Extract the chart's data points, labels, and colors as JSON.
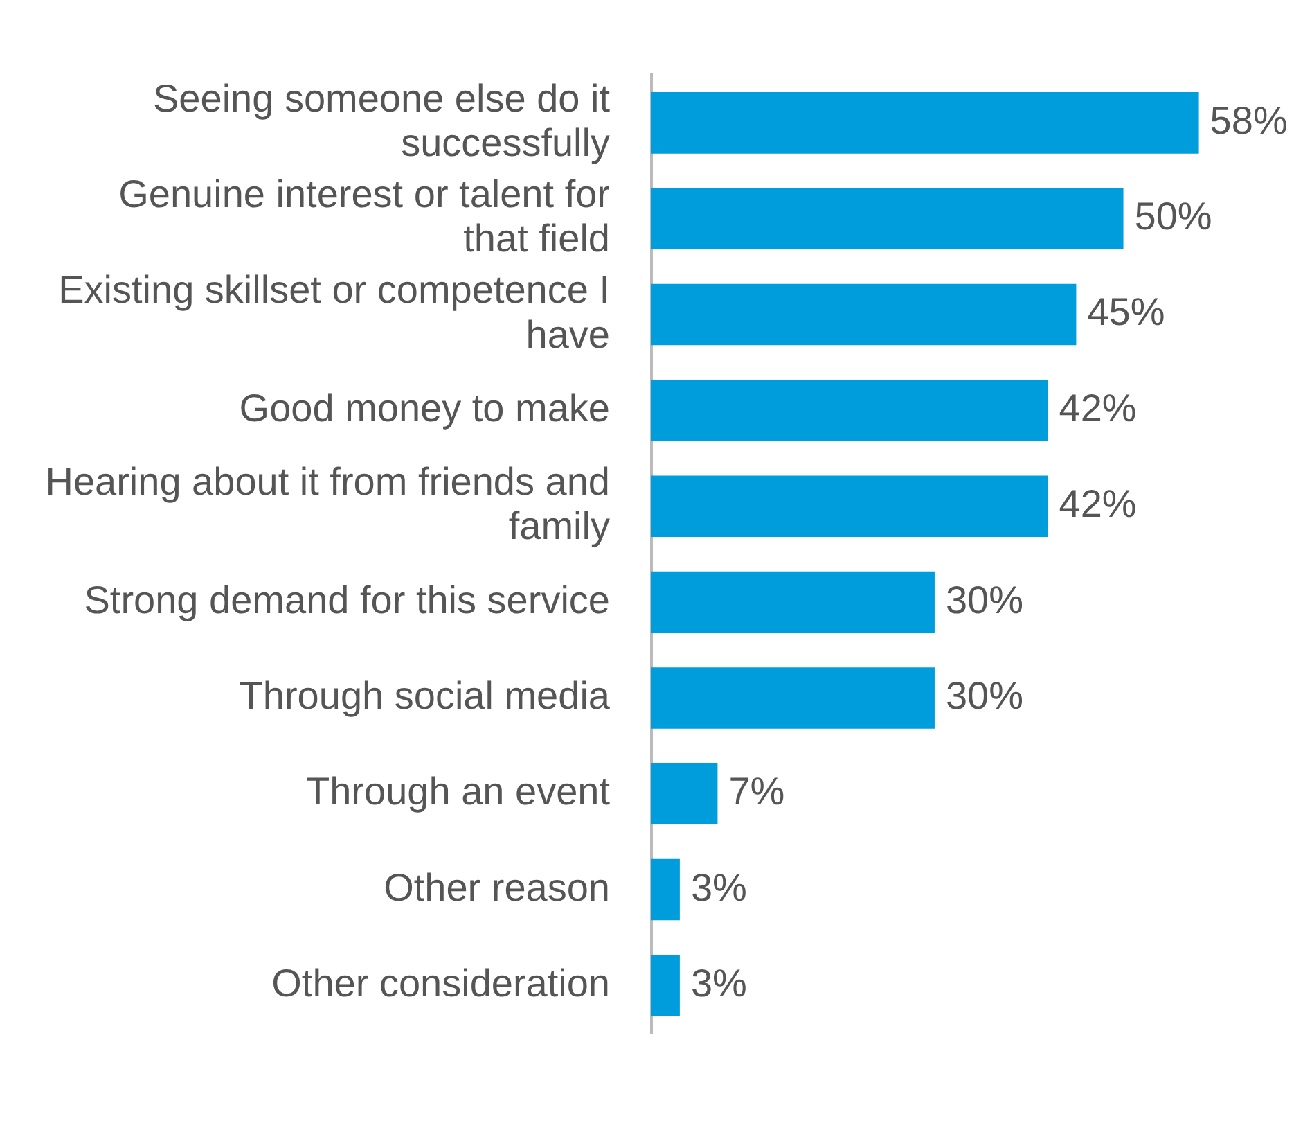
{
  "chart_data": {
    "type": "bar",
    "orientation": "horizontal",
    "categories": [
      "Seeing someone else do it successfully",
      "Genuine interest or talent for that field",
      "Existing skillset or competence I have",
      "Good money to make",
      "Hearing about it from friends and family",
      "Strong demand for this service",
      "Through social media",
      "Through an event",
      "Other reason",
      "Other consideration"
    ],
    "values": [
      58,
      50,
      45,
      42,
      42,
      30,
      30,
      7,
      3,
      3
    ],
    "value_labels": [
      "58%",
      "50%",
      "45%",
      "42%",
      "42%",
      "30%",
      "30%",
      "7%",
      "3%",
      "3%"
    ],
    "color": "#009ddc"
  }
}
